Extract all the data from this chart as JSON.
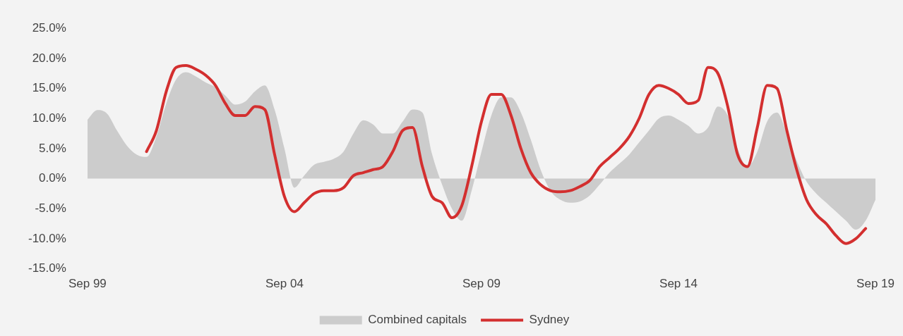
{
  "chart_data": {
    "type": "area",
    "legend": "bottom",
    "ylim": [
      -15,
      25
    ],
    "yticks": [
      {
        "value": -15,
        "label": "-15.0%"
      },
      {
        "value": -10,
        "label": "-10.0%"
      },
      {
        "value": -5,
        "label": "-5.0%"
      },
      {
        "value": 0,
        "label": "0.0%"
      },
      {
        "value": 5,
        "label": "5.0%"
      },
      {
        "value": 10,
        "label": "10.0%"
      },
      {
        "value": 15,
        "label": "15.0%"
      },
      {
        "value": 20,
        "label": "20.0%"
      },
      {
        "value": 25,
        "label": "25.0%"
      }
    ],
    "xlim": [
      "1999-09",
      "2019-09"
    ],
    "xticks": [
      {
        "value": "1999-09",
        "label": "Sep 99"
      },
      {
        "value": "2004-09",
        "label": "Sep 04"
      },
      {
        "value": "2009-09",
        "label": "Sep 09"
      },
      {
        "value": "2014-09",
        "label": "Sep 14"
      },
      {
        "value": "2019-09",
        "label": "Sep 19"
      }
    ],
    "series": [
      {
        "name": "Combined capitals",
        "color": "#cccccc",
        "x": [
          "1999-09",
          "1999-12",
          "2000-03",
          "2000-06",
          "2000-09",
          "2000-12",
          "2001-03",
          "2001-06",
          "2001-09",
          "2001-12",
          "2002-03",
          "2002-06",
          "2002-09",
          "2002-12",
          "2003-03",
          "2003-06",
          "2003-09",
          "2003-12",
          "2004-03",
          "2004-06",
          "2004-09",
          "2004-12",
          "2005-03",
          "2005-06",
          "2005-09",
          "2005-12",
          "2006-03",
          "2006-06",
          "2006-09",
          "2006-12",
          "2007-03",
          "2007-06",
          "2007-09",
          "2007-12",
          "2008-03",
          "2008-06",
          "2008-09",
          "2008-12",
          "2009-03",
          "2009-06",
          "2009-09",
          "2009-12",
          "2010-03",
          "2010-06",
          "2010-09",
          "2010-12",
          "2011-03",
          "2011-06",
          "2011-09",
          "2011-12",
          "2012-03",
          "2012-06",
          "2012-09",
          "2012-12",
          "2013-03",
          "2013-06",
          "2013-09",
          "2013-12",
          "2014-03",
          "2014-06",
          "2014-09",
          "2014-12",
          "2015-03",
          "2015-06",
          "2015-09",
          "2015-12",
          "2016-03",
          "2016-06",
          "2016-09",
          "2016-12",
          "2017-03",
          "2017-06",
          "2017-09",
          "2017-12",
          "2018-03",
          "2018-06",
          "2018-09",
          "2018-12",
          "2019-03",
          "2019-06",
          "2019-09"
        ],
        "values": [
          9.8,
          11.4,
          10.8,
          8.0,
          5.5,
          4.0,
          3.6,
          7.0,
          12.5,
          16.5,
          17.7,
          17.0,
          16.0,
          15.2,
          13.8,
          12.3,
          12.8,
          14.5,
          15.5,
          11.5,
          5.0,
          -1.5,
          0.5,
          2.3,
          2.8,
          3.3,
          4.5,
          7.5,
          9.7,
          9.0,
          7.5,
          7.5,
          9.5,
          11.5,
          11.0,
          4.0,
          -1.0,
          -5.0,
          -7.0,
          -2.0,
          4.5,
          10.5,
          13.5,
          13.5,
          11.0,
          6.5,
          1.5,
          -2.0,
          -3.5,
          -4.0,
          -3.8,
          -2.8,
          -1.0,
          1.0,
          2.5,
          4.0,
          6.0,
          8.0,
          10.0,
          10.5,
          9.8,
          8.8,
          7.5,
          8.5,
          12.0,
          10.5,
          5.0,
          2.0,
          4.5,
          9.5,
          11.0,
          7.5,
          3.0,
          -0.5,
          -2.5,
          -4.0,
          -5.5,
          -7.0,
          -8.5,
          -7.0,
          -3.5
        ]
      },
      {
        "name": "Sydney",
        "type": "line",
        "color": "#d32f2f",
        "x": [
          "2001-03",
          "2001-06",
          "2001-09",
          "2001-12",
          "2002-03",
          "2002-06",
          "2002-09",
          "2002-12",
          "2003-03",
          "2003-06",
          "2003-09",
          "2003-12",
          "2004-03",
          "2004-06",
          "2004-09",
          "2004-12",
          "2005-03",
          "2005-06",
          "2005-09",
          "2005-12",
          "2006-03",
          "2006-06",
          "2006-09",
          "2006-12",
          "2007-03",
          "2007-06",
          "2007-09",
          "2007-12",
          "2008-03",
          "2008-06",
          "2008-09",
          "2008-12",
          "2009-03",
          "2009-06",
          "2009-09",
          "2009-12",
          "2010-03",
          "2010-06",
          "2010-09",
          "2010-12",
          "2011-03",
          "2011-06",
          "2011-09",
          "2011-12",
          "2012-03",
          "2012-06",
          "2012-09",
          "2012-12",
          "2013-03",
          "2013-06",
          "2013-09",
          "2013-12",
          "2014-03",
          "2014-06",
          "2014-09",
          "2014-12",
          "2015-03",
          "2015-06",
          "2015-09",
          "2015-12",
          "2016-03",
          "2016-06",
          "2016-09",
          "2016-12",
          "2017-03",
          "2017-06",
          "2017-09",
          "2017-12",
          "2018-03",
          "2018-06",
          "2018-09",
          "2018-12",
          "2019-03",
          "2019-06"
        ],
        "values": [
          4.5,
          8.0,
          14.5,
          18.5,
          18.8,
          18.2,
          17.2,
          15.5,
          12.5,
          10.5,
          10.5,
          12.0,
          11.5,
          4.0,
          -3.0,
          -5.5,
          -4.0,
          -2.5,
          -2.0,
          -2.0,
          -1.5,
          0.5,
          1.0,
          1.5,
          2.0,
          4.5,
          8.0,
          8.5,
          2.0,
          -3.0,
          -4.0,
          -6.5,
          -4.5,
          2.0,
          9.5,
          14.0,
          14.0,
          10.5,
          5.0,
          1.0,
          -1.0,
          -2.0,
          -2.2,
          -2.0,
          -1.3,
          -0.3,
          2.0,
          3.5,
          5.0,
          7.0,
          10.0,
          14.0,
          15.5,
          15.0,
          14.0,
          12.5,
          13.0,
          18.5,
          17.5,
          12.0,
          4.0,
          2.0,
          8.5,
          15.5,
          15.0,
          8.0,
          1.5,
          -3.5,
          -6.0,
          -7.5,
          -9.5,
          -10.8,
          -10.0,
          -8.3
        ]
      }
    ]
  }
}
